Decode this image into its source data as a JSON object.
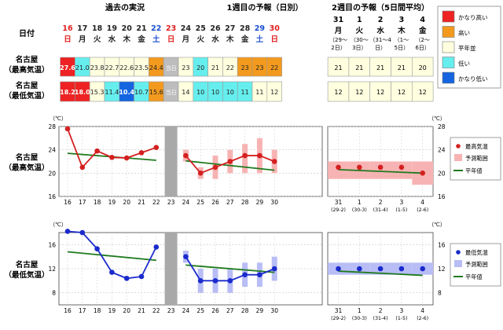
{
  "headers": {
    "past": "過去の実況",
    "week1": "1週目の予報（日別）",
    "week2": "2週目の予報（5日間平均）",
    "date_label": "日付"
  },
  "row_labels": {
    "max_line1": "名古屋",
    "max_line2": "（最高気温）",
    "min_line1": "名古屋",
    "min_line2": "（最低気温）"
  },
  "today_label": "当日",
  "colors": {
    "very_high": "#ee2222",
    "high": "#f39a1e",
    "normal": "#ffffe0",
    "low": "#66eeee",
    "very_low": "#1565e0"
  },
  "legend_table": [
    {
      "key": "very_high",
      "label": "かなり高い"
    },
    {
      "key": "high",
      "label": "高い"
    },
    {
      "key": "normal",
      "label": "平年並"
    },
    {
      "key": "low",
      "label": "低い"
    },
    {
      "key": "very_low",
      "label": "かなり低い"
    }
  ],
  "day_columns": [
    {
      "day": "16",
      "wd": "日",
      "wd_color": "#e02020",
      "max": "27.6",
      "max_cls": "very_high",
      "min": "18.2",
      "min_cls": "very_high"
    },
    {
      "day": "17",
      "wd": "月",
      "wd_color": "#222",
      "max": "21.0",
      "max_cls": "low",
      "min": "18.0",
      "min_cls": "very_high"
    },
    {
      "day": "18",
      "wd": "火",
      "wd_color": "#222",
      "max": "23.8",
      "max_cls": "normal",
      "min": "15.3",
      "min_cls": "normal"
    },
    {
      "day": "19",
      "wd": "水",
      "wd_color": "#222",
      "max": "22.7",
      "max_cls": "normal",
      "min": "11.4",
      "min_cls": "low"
    },
    {
      "day": "20",
      "wd": "木",
      "wd_color": "#222",
      "max": "22.6",
      "max_cls": "normal",
      "min": "10.4",
      "min_cls": "very_low"
    },
    {
      "day": "21",
      "wd": "金",
      "wd_color": "#222",
      "max": "23.5",
      "max_cls": "normal",
      "min": "10.7",
      "min_cls": "low"
    },
    {
      "day": "22",
      "wd": "土",
      "wd_color": "#1a4fd0",
      "max": "24.4",
      "max_cls": "high",
      "min": "15.6",
      "min_cls": "high"
    },
    {
      "day": "23",
      "wd": "日",
      "wd_color": "#e02020",
      "max": "当日",
      "max_cls": "today",
      "min": "当日",
      "min_cls": "today"
    },
    {
      "day": "24",
      "wd": "月",
      "wd_color": "#222",
      "max": "23",
      "max_cls": "normal",
      "min": "14",
      "min_cls": "normal"
    },
    {
      "day": "25",
      "wd": "火",
      "wd_color": "#222",
      "max": "20",
      "max_cls": "low",
      "min": "10",
      "min_cls": "low"
    },
    {
      "day": "26",
      "wd": "水",
      "wd_color": "#222",
      "max": "21",
      "max_cls": "normal",
      "min": "10",
      "min_cls": "low"
    },
    {
      "day": "27",
      "wd": "木",
      "wd_color": "#222",
      "max": "22",
      "max_cls": "normal",
      "min": "10",
      "min_cls": "low"
    },
    {
      "day": "28",
      "wd": "金",
      "wd_color": "#222",
      "max": "23",
      "max_cls": "high",
      "min": "11",
      "min_cls": "low"
    },
    {
      "day": "29",
      "wd": "土",
      "wd_color": "#1a4fd0",
      "max": "23",
      "max_cls": "high",
      "min": "11",
      "min_cls": "normal"
    },
    {
      "day": "30",
      "wd": "日",
      "wd_color": "#e02020",
      "max": "22",
      "max_cls": "high",
      "min": "12",
      "min_cls": "normal"
    }
  ],
  "week2_columns": [
    {
      "day": "31",
      "wd": "月",
      "wd_color": "#222",
      "sub1": "（29～",
      "sub2": "2日）",
      "max": "21",
      "min": "12"
    },
    {
      "day": "1",
      "wd": "火",
      "wd_color": "#222",
      "sub1": "（30～",
      "sub2": "3日）",
      "max": "21",
      "min": "12"
    },
    {
      "day": "2",
      "wd": "水",
      "wd_color": "#222",
      "sub1": "（31～4",
      "sub2": "日）",
      "max": "21",
      "min": "12"
    },
    {
      "day": "3",
      "wd": "木",
      "wd_color": "#222",
      "sub1": "（1～",
      "sub2": "5日）",
      "max": "21",
      "min": "12"
    },
    {
      "day": "4",
      "wd": "金",
      "wd_color": "#222",
      "sub1": "（2～",
      "sub2": "6日）",
      "max": "20",
      "min": "12"
    }
  ],
  "chart_data": [
    {
      "type": "line",
      "title": "",
      "row_label_1": "名古屋",
      "row_label_2": "（最高気温）",
      "unit_label": "（℃）",
      "ylim": [
        16,
        28
      ],
      "yticks": [
        16,
        20,
        24,
        28
      ],
      "grid": true,
      "x_daily": [
        "16",
        "17",
        "18",
        "19",
        "20",
        "21",
        "22",
        "23",
        "24",
        "25",
        "26",
        "27",
        "28",
        "29",
        "30"
      ],
      "x_week2": [
        "31",
        "1",
        "2",
        "3",
        "4"
      ],
      "x_week2_sub": [
        "(29-2)",
        "(30-3)",
        "(31-4)",
        "(1-5)",
        "(2-6)"
      ],
      "observed": [
        [
          16,
          27.6
        ],
        [
          17,
          21.0
        ],
        [
          18,
          23.8
        ],
        [
          19,
          22.7
        ],
        [
          20,
          22.6
        ],
        [
          21,
          23.5
        ],
        [
          22,
          24.4
        ]
      ],
      "forecast": [
        [
          24,
          23
        ],
        [
          25,
          20
        ],
        [
          26,
          21
        ],
        [
          27,
          22
        ],
        [
          28,
          23
        ],
        [
          29,
          23
        ],
        [
          30,
          22
        ]
      ],
      "forecast_range": [
        [
          24,
          22,
          24
        ],
        [
          25,
          19,
          21
        ],
        [
          26,
          19,
          23
        ],
        [
          27,
          20,
          24
        ],
        [
          28,
          20,
          25
        ],
        [
          29,
          20,
          26
        ],
        [
          30,
          20,
          24
        ]
      ],
      "normal_past": [
        [
          16,
          23.4
        ],
        [
          22,
          22.2
        ]
      ],
      "normal_week1": [
        [
          24,
          22.1
        ],
        [
          30,
          20.5
        ]
      ],
      "week2_values": [
        21,
        21,
        21,
        21,
        20
      ],
      "week2_range": [
        [
          19,
          22
        ],
        [
          19,
          22
        ],
        [
          19,
          22
        ],
        [
          19,
          22
        ],
        [
          18,
          22
        ]
      ],
      "week2_normal": [
        20.6,
        20.0
      ],
      "series_color": "#d42020",
      "range_color": "#f7b3b3",
      "normal_color": "#1e7a1e",
      "legend": [
        "最高気温",
        "予測範囲",
        "平年値"
      ]
    },
    {
      "type": "line",
      "title": "",
      "row_label_1": "名古屋",
      "row_label_2": "（最低気温）",
      "unit_label": "（℃）",
      "ylim": [
        6,
        18
      ],
      "yticks": [
        8,
        12,
        16
      ],
      "grid": true,
      "x_daily": [
        "16",
        "17",
        "18",
        "19",
        "20",
        "21",
        "22",
        "23",
        "24",
        "25",
        "26",
        "27",
        "28",
        "29",
        "30"
      ],
      "x_week2": [
        "31",
        "1",
        "2",
        "3",
        "4"
      ],
      "x_week2_sub": [
        "(29-2)",
        "(30-3)",
        "(31-4)",
        "(1-5)",
        "(2-6)"
      ],
      "observed": [
        [
          16,
          18.2
        ],
        [
          17,
          18.0
        ],
        [
          18,
          15.3
        ],
        [
          19,
          11.4
        ],
        [
          20,
          10.4
        ],
        [
          21,
          10.7
        ],
        [
          22,
          15.6
        ]
      ],
      "forecast": [
        [
          24,
          14
        ],
        [
          25,
          10
        ],
        [
          26,
          10
        ],
        [
          27,
          10
        ],
        [
          28,
          11
        ],
        [
          29,
          11
        ],
        [
          30,
          12
        ]
      ],
      "forecast_range": [
        [
          24,
          13,
          15
        ],
        [
          25,
          8,
          12
        ],
        [
          26,
          8,
          12
        ],
        [
          27,
          8,
          12
        ],
        [
          28,
          9,
          13
        ],
        [
          29,
          9,
          13
        ],
        [
          30,
          10,
          14
        ]
      ],
      "normal_past": [
        [
          16,
          14.8
        ],
        [
          22,
          13.4
        ]
      ],
      "normal_week1": [
        [
          24,
          12.6
        ],
        [
          30,
          11.4
        ]
      ],
      "week2_values": [
        12,
        12,
        12,
        12,
        12
      ],
      "week2_range": [
        [
          11,
          13
        ],
        [
          11,
          13
        ],
        [
          11,
          13
        ],
        [
          11,
          13
        ],
        [
          11,
          13
        ]
      ],
      "week2_normal": [
        11.6,
        10.9
      ],
      "series_color": "#1a2acc",
      "range_color": "#b8bdf5",
      "normal_color": "#1e7a1e",
      "legend": [
        "最低気温",
        "予測範囲",
        "平年値"
      ]
    }
  ]
}
